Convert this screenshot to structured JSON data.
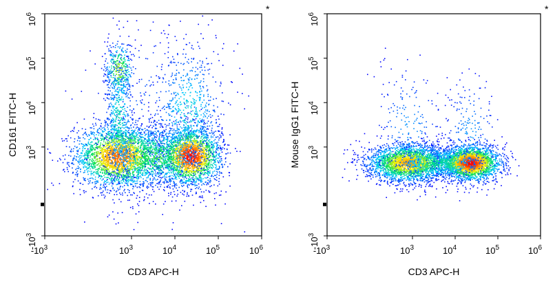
{
  "chart_data": [
    {
      "type": "scatter",
      "subtype": "flow-cytometry-density-dot-plot",
      "corner_mark": "*",
      "xlabel": "CD3 APC-H",
      "ylabel": "CD161 FITC-H",
      "x_scale": "biexponential",
      "y_scale": "biexponential",
      "xlim": [
        -1000,
        1000000
      ],
      "ylim": [
        -1000,
        1000000
      ],
      "x_ticks": [
        {
          "base": "-10",
          "exp": "3",
          "value": -1000
        },
        {
          "base": "10",
          "exp": "3",
          "value": 1000
        },
        {
          "base": "10",
          "exp": "4",
          "value": 10000
        },
        {
          "base": "10",
          "exp": "5",
          "value": 100000
        },
        {
          "base": "10",
          "exp": "6",
          "value": 1000000
        }
      ],
      "y_ticks": [
        {
          "base": "-10",
          "exp": "3",
          "value": -1000
        },
        {
          "base": "10",
          "exp": "3",
          "value": 1000
        },
        {
          "base": "10",
          "exp": "4",
          "value": 10000
        },
        {
          "base": "10",
          "exp": "5",
          "value": 100000
        },
        {
          "base": "10",
          "exp": "6",
          "value": 1000000
        }
      ],
      "colormap": [
        "#0000ff",
        "#00c8ff",
        "#00e060",
        "#f0f000",
        "#ff8c00",
        "#ff0000"
      ],
      "populations": [
        {
          "x_center": 700,
          "x_spread": 0.32,
          "y_center": 800,
          "y_spread": 0.22,
          "count": 2600,
          "peak_density": 0.85
        },
        {
          "x_center": 22000,
          "x_spread": 0.22,
          "y_center": 800,
          "y_spread": 0.2,
          "count": 2200,
          "peak_density": 1.0
        },
        {
          "x_center": 3500,
          "x_spread": 0.35,
          "y_center": 800,
          "y_spread": 0.22,
          "count": 900,
          "peak_density": 0.45
        },
        {
          "x_center": 700,
          "x_spread": 0.1,
          "y_center": 55000,
          "y_spread": 0.2,
          "count": 300,
          "peak_density": 0.55
        },
        {
          "x_center": 700,
          "x_spread": 0.1,
          "y_center": 4000,
          "y_spread": 0.5,
          "count": 600,
          "peak_density": 0.3
        },
        {
          "x_center": 20000,
          "x_spread": 0.25,
          "y_center": 6000,
          "y_spread": 0.5,
          "count": 700,
          "peak_density": 0.25
        },
        {
          "x_center": 4000,
          "x_spread": 0.6,
          "y_center": 5000,
          "y_spread": 0.7,
          "count": 250,
          "peak_density": 0.1
        }
      ]
    },
    {
      "type": "scatter",
      "subtype": "flow-cytometry-density-dot-plot",
      "corner_mark": "*",
      "xlabel": "CD3 APC-H",
      "ylabel": "Mouse IgG1 FITC-H",
      "x_scale": "biexponential",
      "y_scale": "biexponential",
      "xlim": [
        -1000,
        1000000
      ],
      "ylim": [
        -1000,
        1000000
      ],
      "x_ticks": [
        {
          "base": "-10",
          "exp": "3",
          "value": -1000
        },
        {
          "base": "10",
          "exp": "3",
          "value": 1000
        },
        {
          "base": "10",
          "exp": "4",
          "value": 10000
        },
        {
          "base": "10",
          "exp": "5",
          "value": 100000
        },
        {
          "base": "10",
          "exp": "6",
          "value": 1000000
        }
      ],
      "y_ticks": [
        {
          "base": "-10",
          "exp": "3",
          "value": -1000
        },
        {
          "base": "10",
          "exp": "3",
          "value": 1000
        },
        {
          "base": "10",
          "exp": "4",
          "value": 10000
        },
        {
          "base": "10",
          "exp": "5",
          "value": 100000
        },
        {
          "base": "10",
          "exp": "6",
          "value": 1000000
        }
      ],
      "colormap": [
        "#0000ff",
        "#00c8ff",
        "#00e060",
        "#f0f000",
        "#ff8c00",
        "#ff0000"
      ],
      "populations": [
        {
          "x_center": 900,
          "x_spread": 0.3,
          "y_center": 650,
          "y_spread": 0.13,
          "count": 2600,
          "peak_density": 0.75
        },
        {
          "x_center": 22000,
          "x_spread": 0.22,
          "y_center": 650,
          "y_spread": 0.12,
          "count": 2400,
          "peak_density": 1.0
        },
        {
          "x_center": 4000,
          "x_spread": 0.35,
          "y_center": 650,
          "y_spread": 0.12,
          "count": 700,
          "peak_density": 0.35
        },
        {
          "x_center": 900,
          "x_spread": 0.25,
          "y_center": 2500,
          "y_spread": 0.45,
          "count": 200,
          "peak_density": 0.15
        },
        {
          "x_center": 22000,
          "x_spread": 0.2,
          "y_center": 2000,
          "y_spread": 0.4,
          "count": 200,
          "peak_density": 0.15
        }
      ]
    }
  ]
}
